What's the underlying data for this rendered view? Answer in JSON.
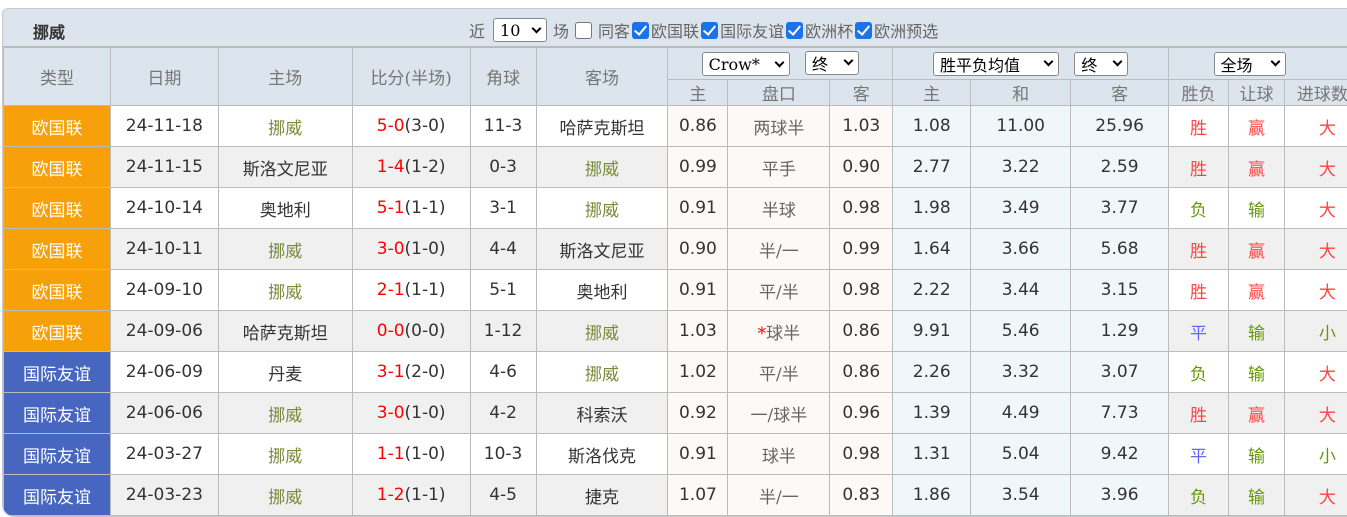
{
  "title": "挪威",
  "filters": {
    "near_label": "近",
    "count": "10",
    "games_label": "场",
    "same_label": "同客",
    "same_checked": false,
    "leagues": [
      {
        "label": "欧国联",
        "checked": true
      },
      {
        "label": "国际友谊",
        "checked": true
      },
      {
        "label": "欧洲杯",
        "checked": true
      },
      {
        "label": "欧洲预选",
        "checked": true
      }
    ]
  },
  "headers": {
    "type": "类型",
    "date": "日期",
    "home": "主场",
    "score": "比分(半场)",
    "corner": "角球",
    "away": "客场",
    "ah_company": "Crow*",
    "ah_stage": "终",
    "eu_type": "胜平负均值",
    "eu_stage": "终",
    "period": "全场",
    "ah_home": "主",
    "ah_line": "盘口",
    "ah_away": "客",
    "eu_home": "主",
    "eu_draw": "和",
    "eu_away": "客",
    "res_wl": "胜负",
    "res_ah": "让球",
    "res_ou": "进球数"
  },
  "colors": {
    "league_nations": "#f7a00a",
    "league_friendly": "#4766bf",
    "win": "#f44",
    "lose": "#690",
    "draw": "#66f"
  },
  "rows": [
    {
      "league": "欧国联",
      "lc": "#f7a00a",
      "date": "24-11-18",
      "home": "挪威",
      "hh": true,
      "ft": "5-0",
      "ht": "(3-0)",
      "corner": "11-3",
      "away": "哈萨克斯坦",
      "ah": false,
      "o1": "0.86",
      "line": "两球半",
      "star": "",
      "o2": "1.03",
      "e1": "1.08",
      "e2": "11.00",
      "e3": "25.96",
      "wl": "胜",
      "wlc": "r-red",
      "ahr": "赢",
      "ahc": "r-red",
      "ou": "大",
      "ouc": "r-red"
    },
    {
      "league": "欧国联",
      "lc": "#f7a00a",
      "date": "24-11-15",
      "home": "斯洛文尼亚",
      "hh": false,
      "ft": "1-4",
      "ht": "(1-2)",
      "corner": "0-3",
      "away": "挪威",
      "ah": true,
      "o1": "0.99",
      "line": "平手",
      "star": "",
      "o2": "0.90",
      "e1": "2.77",
      "e2": "3.22",
      "e3": "2.59",
      "wl": "胜",
      "wlc": "r-red",
      "ahr": "赢",
      "ahc": "r-red",
      "ou": "大",
      "ouc": "r-red"
    },
    {
      "league": "欧国联",
      "lc": "#f7a00a",
      "date": "24-10-14",
      "home": "奥地利",
      "hh": false,
      "ft": "5-1",
      "ht": "(1-1)",
      "corner": "3-1",
      "away": "挪威",
      "ah": true,
      "o1": "0.91",
      "line": "半球",
      "star": "",
      "o2": "0.98",
      "e1": "1.98",
      "e2": "3.49",
      "e3": "3.77",
      "wl": "负",
      "wlc": "r-green",
      "ahr": "输",
      "ahc": "r-green",
      "ou": "大",
      "ouc": "r-red"
    },
    {
      "league": "欧国联",
      "lc": "#f7a00a",
      "date": "24-10-11",
      "home": "挪威",
      "hh": true,
      "ft": "3-0",
      "ht": "(1-0)",
      "corner": "4-4",
      "away": "斯洛文尼亚",
      "ah": false,
      "o1": "0.90",
      "line": "半/一",
      "star": "",
      "o2": "0.99",
      "e1": "1.64",
      "e2": "3.66",
      "e3": "5.68",
      "wl": "胜",
      "wlc": "r-red",
      "ahr": "赢",
      "ahc": "r-red",
      "ou": "大",
      "ouc": "r-red"
    },
    {
      "league": "欧国联",
      "lc": "#f7a00a",
      "date": "24-09-10",
      "home": "挪威",
      "hh": true,
      "ft": "2-1",
      "ht": "(1-1)",
      "corner": "5-1",
      "away": "奥地利",
      "ah": false,
      "o1": "0.91",
      "line": "平/半",
      "star": "",
      "o2": "0.98",
      "e1": "2.22",
      "e2": "3.44",
      "e3": "3.15",
      "wl": "胜",
      "wlc": "r-red",
      "ahr": "赢",
      "ahc": "r-red",
      "ou": "大",
      "ouc": "r-red"
    },
    {
      "league": "欧国联",
      "lc": "#f7a00a",
      "date": "24-09-06",
      "home": "哈萨克斯坦",
      "hh": false,
      "ft": "0-0",
      "ht": "(0-0)",
      "corner": "1-12",
      "away": "挪威",
      "ah": true,
      "o1": "1.03",
      "line": "球半",
      "star": "*",
      "o2": "0.86",
      "e1": "9.91",
      "e2": "5.46",
      "e3": "1.29",
      "wl": "平",
      "wlc": "r-blue",
      "ahr": "输",
      "ahc": "r-green",
      "ou": "小",
      "ouc": "r-green"
    },
    {
      "league": "国际友谊",
      "lc": "#4766bf",
      "date": "24-06-09",
      "home": "丹麦",
      "hh": false,
      "ft": "3-1",
      "ht": "(2-0)",
      "corner": "4-6",
      "away": "挪威",
      "ah": true,
      "o1": "1.02",
      "line": "平/半",
      "star": "",
      "o2": "0.86",
      "e1": "2.26",
      "e2": "3.32",
      "e3": "3.07",
      "wl": "负",
      "wlc": "r-green",
      "ahr": "输",
      "ahc": "r-green",
      "ou": "大",
      "ouc": "r-red"
    },
    {
      "league": "国际友谊",
      "lc": "#4766bf",
      "date": "24-06-06",
      "home": "挪威",
      "hh": true,
      "ft": "3-0",
      "ht": "(1-0)",
      "corner": "4-2",
      "away": "科索沃",
      "ah": false,
      "o1": "0.92",
      "line": "一/球半",
      "star": "",
      "o2": "0.96",
      "e1": "1.39",
      "e2": "4.49",
      "e3": "7.73",
      "wl": "胜",
      "wlc": "r-red",
      "ahr": "赢",
      "ahc": "r-red",
      "ou": "大",
      "ouc": "r-red"
    },
    {
      "league": "国际友谊",
      "lc": "#4766bf",
      "date": "24-03-27",
      "home": "挪威",
      "hh": true,
      "ft": "1-1",
      "ht": "(1-0)",
      "corner": "10-3",
      "away": "斯洛伐克",
      "ah": false,
      "o1": "0.91",
      "line": "球半",
      "star": "",
      "o2": "0.98",
      "e1": "1.31",
      "e2": "5.04",
      "e3": "9.42",
      "wl": "平",
      "wlc": "r-blue",
      "ahr": "输",
      "ahc": "r-green",
      "ou": "小",
      "ouc": "r-green"
    },
    {
      "league": "国际友谊",
      "lc": "#4766bf",
      "date": "24-03-23",
      "home": "挪威",
      "hh": true,
      "ft": "1-2",
      "ht": "(1-1)",
      "corner": "4-5",
      "away": "捷克",
      "ah": false,
      "o1": "1.07",
      "line": "半/一",
      "star": "",
      "o2": "0.83",
      "e1": "1.86",
      "e2": "3.54",
      "e3": "3.96",
      "wl": "负",
      "wlc": "r-green",
      "ahr": "输",
      "ahc": "r-green",
      "ou": "大",
      "ouc": "r-red"
    }
  ]
}
